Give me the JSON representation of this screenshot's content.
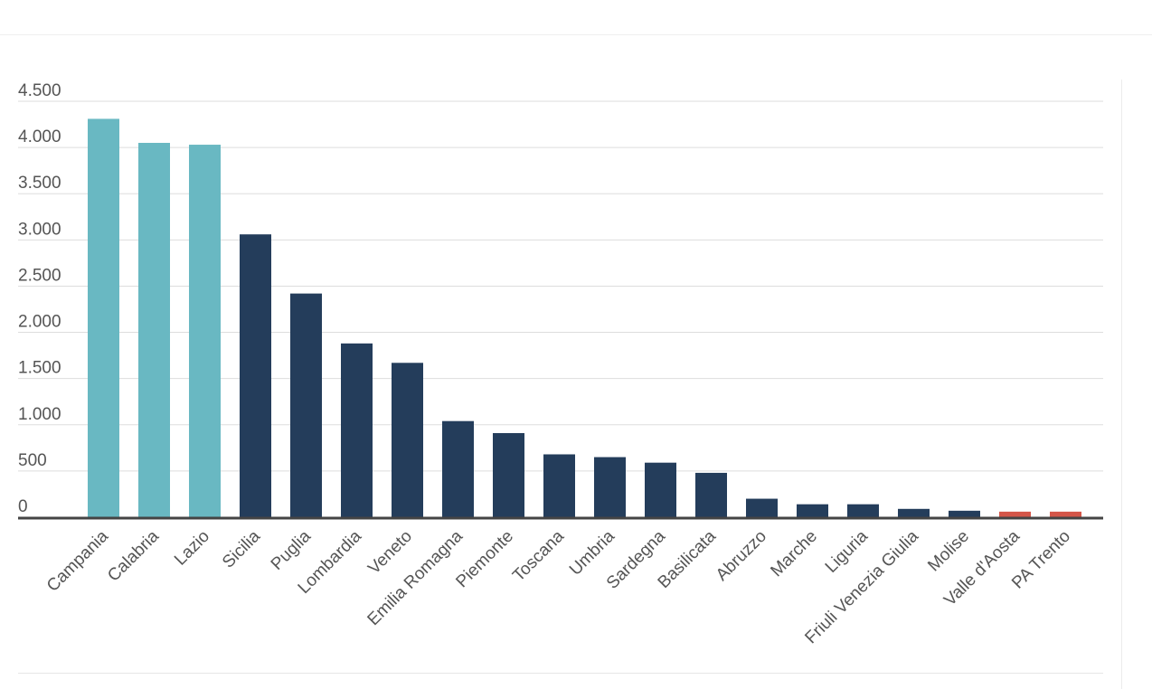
{
  "chart_data": {
    "type": "bar",
    "title": "",
    "xlabel": "",
    "ylabel": "",
    "ylim": [
      0,
      4500
    ],
    "yticks": [
      0,
      500,
      1000,
      1500,
      2000,
      2500,
      3000,
      3500,
      4000,
      4500
    ],
    "ytick_labels": [
      "0",
      "500",
      "1.000",
      "1.500",
      "2.000",
      "2.500",
      "3.000",
      "3.500",
      "4.000",
      "4.500"
    ],
    "grid": true,
    "legend": "none",
    "colors": {
      "teal": "#69b8c2",
      "navy": "#243d5b",
      "red": "#d45548",
      "grid": "#dddddd",
      "axis": "#444444"
    },
    "categories": [
      "Campania",
      "Calabria",
      "Lazio",
      "Sicilia",
      "Puglia",
      "Lombardia",
      "Veneto",
      "Emilia Romagna",
      "Piemonte",
      "Toscana",
      "Umbria",
      "Sardegna",
      "Basilicata",
      "Abruzzo",
      "Marche",
      "Liguria",
      "Friuli Venezia Giulia",
      "Molise",
      "Valle d'Aosta",
      "PA Trento"
    ],
    "values": [
      4310,
      4050,
      4030,
      3060,
      2420,
      1880,
      1670,
      1040,
      910,
      680,
      650,
      590,
      480,
      200,
      140,
      140,
      90,
      70,
      60,
      60
    ],
    "bar_colors": [
      "teal",
      "teal",
      "teal",
      "navy",
      "navy",
      "navy",
      "navy",
      "navy",
      "navy",
      "navy",
      "navy",
      "navy",
      "navy",
      "navy",
      "navy",
      "navy",
      "navy",
      "navy",
      "red",
      "red"
    ]
  }
}
